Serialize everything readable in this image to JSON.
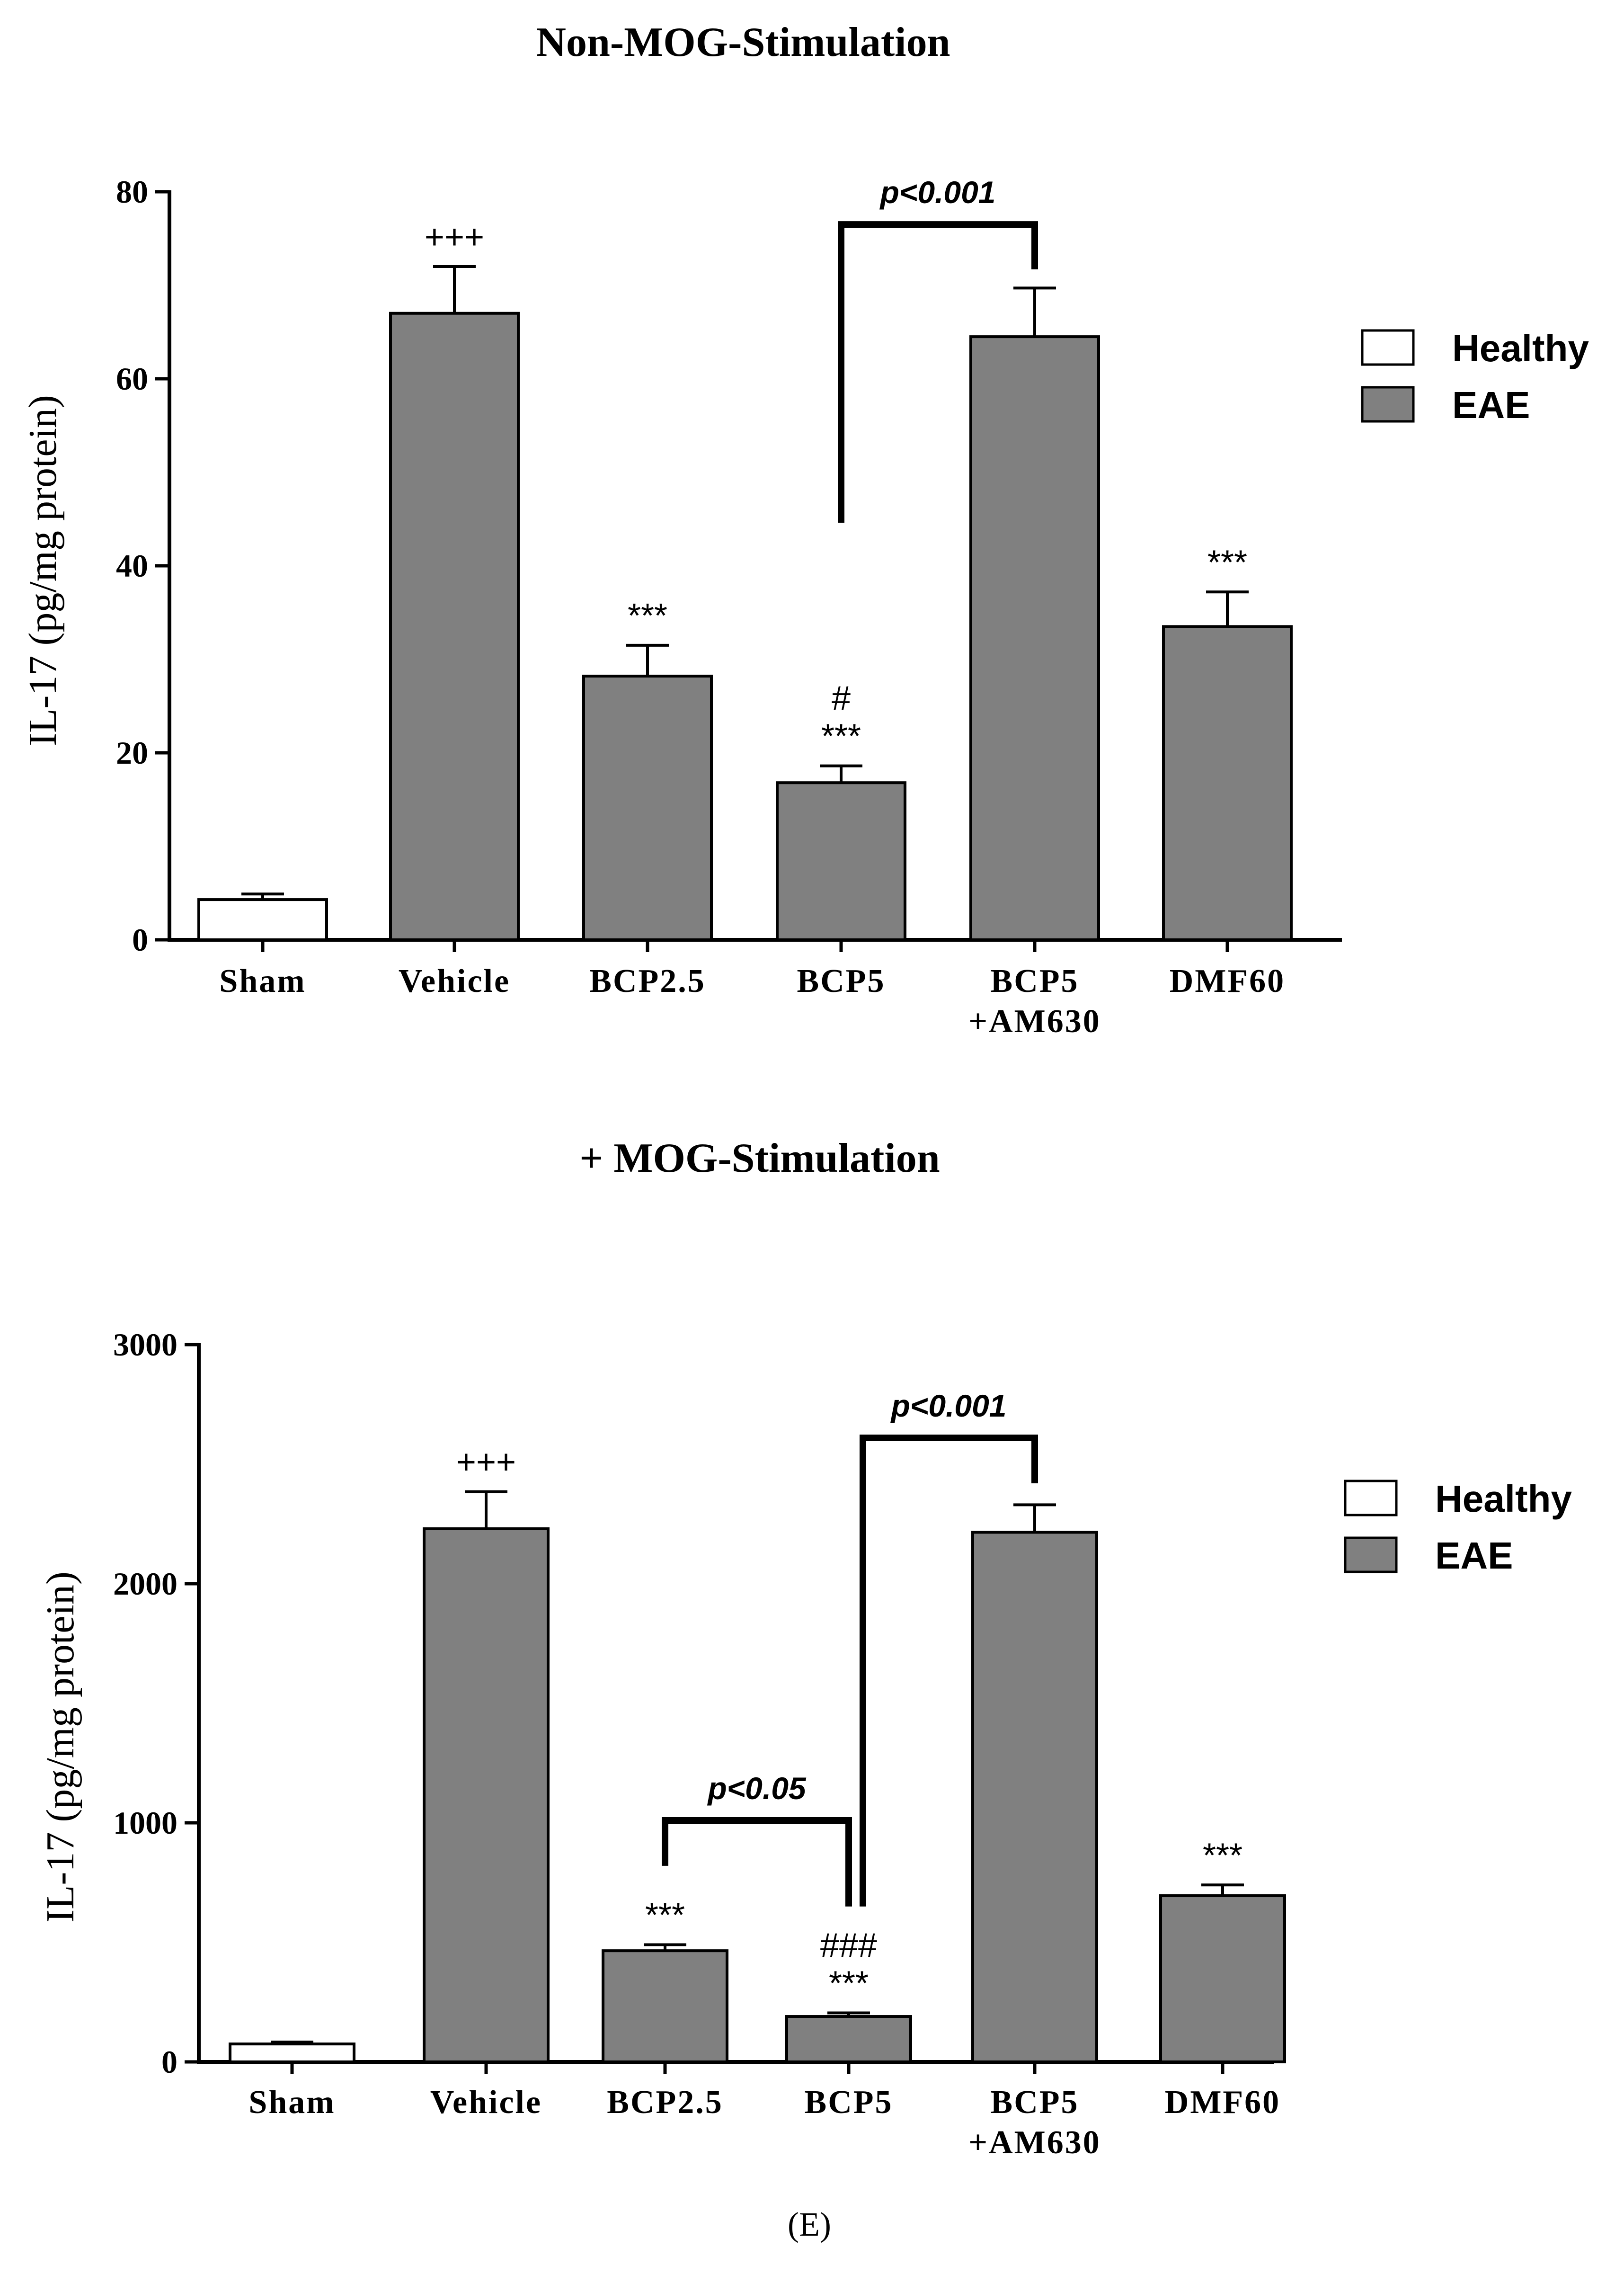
{
  "caption": "(E)",
  "legend": [
    {
      "label": "Healthy",
      "color": "#ffffff"
    },
    {
      "label": "EAE",
      "color": "#808080"
    }
  ],
  "chart_data": [
    {
      "type": "bar",
      "title": "Non-MOG-Stimulation",
      "ylabel": "IL-17 (pg/mg protein)",
      "xlabel": "",
      "ylim": [
        0,
        80
      ],
      "yticks": [
        0,
        20,
        40,
        60,
        80
      ],
      "categories": [
        "Sham",
        "Vehicle",
        "BCP2.5",
        "BCP5",
        "BCP5\n+AM630",
        "DMF60"
      ],
      "groups": [
        "Healthy",
        "EAE",
        "EAE",
        "EAE",
        "EAE",
        "EAE"
      ],
      "values": [
        4.3,
        67,
        28.2,
        16.8,
        64.5,
        33.5
      ],
      "errors": [
        0.6,
        5.0,
        3.3,
        1.8,
        5.2,
        3.7
      ],
      "annotations": [
        "",
        "+++",
        "***",
        "***",
        "",
        "***"
      ],
      "hash_marks": [
        "",
        "",
        "",
        "#",
        "",
        ""
      ],
      "comparisons": [
        {
          "from": 3,
          "to": 4,
          "label": "p<0.001",
          "top": 76.5
        }
      ]
    },
    {
      "type": "bar",
      "title": "+ MOG-Stimulation",
      "ylabel": "IL-17 (pg/mg protein)",
      "xlabel": "",
      "ylim": [
        0,
        3000
      ],
      "yticks": [
        0,
        1000,
        2000,
        3000
      ],
      "categories": [
        "Sham",
        "Vehicle",
        "BCP2.5",
        "BCP5",
        "BCP5\n+AM630",
        "DMF60"
      ],
      "groups": [
        "Healthy",
        "EAE",
        "EAE",
        "EAE",
        "EAE",
        "EAE"
      ],
      "values": [
        75,
        2230,
        465,
        190,
        2215,
        695
      ],
      "errors": [
        8,
        155,
        25,
        15,
        115,
        45
      ],
      "annotations": [
        "",
        "+++",
        "***",
        "***",
        "",
        "***"
      ],
      "hash_marks": [
        "",
        "",
        "",
        "###",
        "",
        ""
      ],
      "comparisons": [
        {
          "from": 2,
          "to": 3,
          "label": "p<0.05",
          "top": 1010,
          "left_foot": 820,
          "right_foot": 650
        },
        {
          "from": 3,
          "to": 4,
          "label": "p<0.001",
          "top": 2610,
          "left_foot": 650,
          "right_foot": 2420
        }
      ]
    }
  ]
}
